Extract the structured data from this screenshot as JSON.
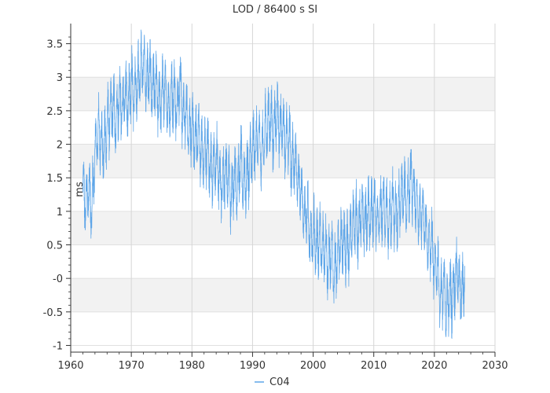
{
  "chart_data": {
    "type": "line",
    "title": "LOD / 86400 s SI",
    "xlabel": "",
    "ylabel": "ms",
    "xlim": [
      1960,
      2030
    ],
    "ylim": [
      -1.1,
      3.8
    ],
    "x_ticks": [
      "1960",
      "1970",
      "1980",
      "1990",
      "2000",
      "2010",
      "2020",
      "2030"
    ],
    "y_ticks": [
      "-1",
      "-0.5",
      "-0",
      "0.5",
      "1",
      "1.5",
      "2",
      "2.5",
      "3",
      "3.5"
    ],
    "grid": true,
    "legend": "bottom-center",
    "series": [
      {
        "name": "C04",
        "color": "#5da5e8",
        "x": [
          1962.0,
          1962.5,
          1963.0,
          1963.5,
          1964.0,
          1964.5,
          1965.0,
          1965.5,
          1966.0,
          1966.5,
          1967.0,
          1967.5,
          1968.0,
          1968.5,
          1969.0,
          1969.5,
          1970.0,
          1970.5,
          1971.0,
          1971.5,
          1972.0,
          1972.5,
          1973.0,
          1973.5,
          1974.0,
          1974.5,
          1975.0,
          1975.5,
          1976.0,
          1976.5,
          1977.0,
          1977.5,
          1978.0,
          1978.5,
          1979.0,
          1979.5,
          1980.0,
          1980.5,
          1981.0,
          1981.5,
          1982.0,
          1982.5,
          1983.0,
          1983.5,
          1984.0,
          1984.5,
          1985.0,
          1985.5,
          1986.0,
          1986.5,
          1987.0,
          1987.5,
          1988.0,
          1988.5,
          1989.0,
          1989.5,
          1990.0,
          1990.5,
          1991.0,
          1991.5,
          1992.0,
          1992.5,
          1993.0,
          1993.5,
          1994.0,
          1994.5,
          1995.0,
          1995.5,
          1996.0,
          1996.5,
          1997.0,
          1997.5,
          1998.0,
          1998.5,
          1999.0,
          1999.5,
          2000.0,
          2000.5,
          2001.0,
          2001.5,
          2002.0,
          2002.5,
          2003.0,
          2003.5,
          2004.0,
          2004.5,
          2005.0,
          2005.5,
          2006.0,
          2006.5,
          2007.0,
          2007.5,
          2008.0,
          2008.5,
          2009.0,
          2009.5,
          2010.0,
          2010.5,
          2011.0,
          2011.5,
          2012.0,
          2012.5,
          2013.0,
          2013.5,
          2014.0,
          2014.5,
          2015.0,
          2015.5,
          2016.0,
          2016.5,
          2017.0,
          2017.5,
          2018.0,
          2018.5,
          2019.0,
          2019.5,
          2020.0,
          2020.5,
          2021.0,
          2021.5,
          2022.0,
          2022.5,
          2023.0,
          2023.5,
          2024.0,
          2024.5,
          2025.0
        ],
        "values": [
          1.3,
          1.1,
          1.4,
          1.0,
          1.9,
          2.2,
          2.1,
          1.9,
          2.3,
          2.4,
          2.6,
          2.3,
          2.7,
          2.5,
          2.8,
          2.6,
          3.0,
          2.7,
          2.9,
          3.1,
          3.3,
          2.9,
          3.1,
          2.8,
          2.9,
          2.6,
          2.7,
          2.9,
          2.5,
          2.7,
          2.8,
          2.5,
          3.0,
          2.4,
          2.5,
          2.2,
          2.3,
          2.0,
          2.2,
          1.9,
          1.8,
          2.0,
          1.7,
          1.6,
          1.8,
          1.5,
          1.4,
          1.6,
          1.5,
          1.2,
          1.6,
          1.3,
          1.8,
          1.4,
          1.5,
          1.7,
          1.9,
          2.0,
          2.1,
          1.8,
          2.2,
          2.3,
          2.4,
          2.1,
          2.5,
          2.2,
          2.3,
          2.0,
          2.1,
          1.7,
          1.8,
          1.5,
          1.3,
          0.9,
          1.0,
          0.6,
          0.7,
          0.5,
          0.6,
          0.4,
          0.5,
          0.2,
          0.4,
          0.1,
          0.3,
          0.5,
          0.6,
          0.4,
          0.5,
          0.8,
          0.9,
          0.7,
          1.0,
          0.8,
          1.0,
          0.9,
          1.1,
          0.8,
          0.9,
          1.1,
          1.0,
          0.8,
          1.1,
          0.9,
          1.0,
          1.2,
          1.3,
          1.1,
          1.5,
          1.3,
          1.1,
          0.9,
          1.0,
          0.8,
          0.5,
          0.6,
          0.1,
          0.2,
          -0.3,
          -0.1,
          -0.5,
          -0.2,
          -0.3,
          0.1,
          0.0,
          -0.3,
          0.1
        ]
      }
    ]
  }
}
